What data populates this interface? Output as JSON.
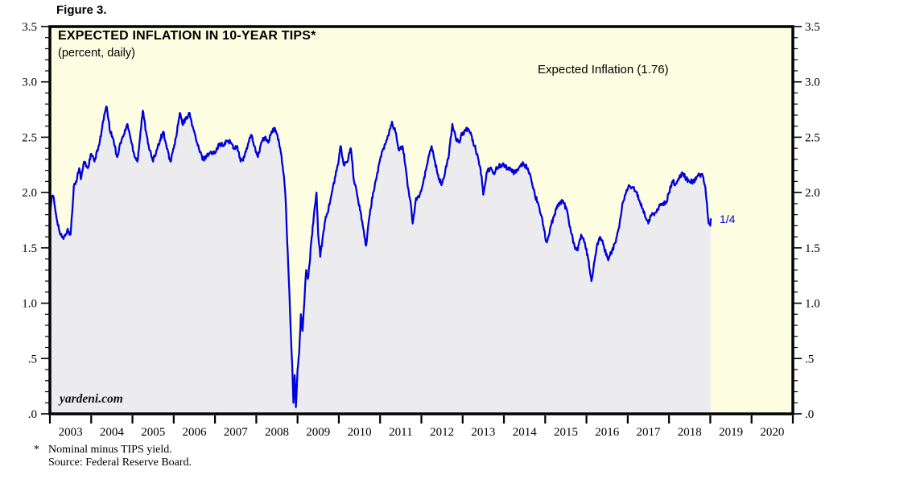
{
  "figure_label": "Figure 3.",
  "chart": {
    "title": "EXPECTED INFLATION IN 10-YEAR TIPS*",
    "subtitle": "(percent, daily)",
    "legend_label": "Expected Inflation (1.76)",
    "watermark": "yardeni.com",
    "end_date_label": "1/4"
  },
  "footnotes": {
    "asterisk": "*",
    "line1": "Nominal minus TIPS yield.",
    "line2": "Source: Federal Reserve Board."
  },
  "chart_data": {
    "type": "line",
    "title": "EXPECTED INFLATION IN 10-YEAR TIPS*",
    "subtitle": "(percent, daily)",
    "legend": [
      "Expected Inflation (1.76)"
    ],
    "legend_position": "top-right-inside",
    "xlabel": "",
    "ylabel": "percent",
    "xlim": [
      2003,
      2021
    ],
    "ylim": [
      0,
      3.5
    ],
    "y_major_step": 0.5,
    "y_minor_step": 0.1,
    "grid": false,
    "x_tick_years": [
      "2003",
      "2004",
      "2005",
      "2006",
      "2007",
      "2008",
      "2009",
      "2010",
      "2011",
      "2012",
      "2013",
      "2014",
      "2015",
      "2016",
      "2017",
      "2018",
      "2019",
      "2020"
    ],
    "y_tick_labels": [
      "3.5",
      "3.0",
      "2.5",
      "2.0",
      "1.5",
      "1.0",
      ".5",
      ".0"
    ],
    "y_tick_values": [
      3.5,
      3.0,
      2.5,
      2.0,
      1.5,
      1.0,
      0.5,
      0.0
    ],
    "colors": {
      "line": "#0000dc",
      "fill_below": "#ececef",
      "plot_background": "#fdfde2",
      "frame": "#000000",
      "text": "#000000",
      "annotation": "#0000dc"
    },
    "noise_amplitude": 0.022,
    "series": [
      {
        "name": "Expected Inflation",
        "last_value": 1.76,
        "last_date_label": "1/4",
        "points": [
          [
            2003.0,
            1.82
          ],
          [
            2003.04,
            1.95
          ],
          [
            2003.08,
            1.97
          ],
          [
            2003.15,
            1.8
          ],
          [
            2003.25,
            1.62
          ],
          [
            2003.33,
            1.58
          ],
          [
            2003.42,
            1.66
          ],
          [
            2003.5,
            1.62
          ],
          [
            2003.54,
            1.82
          ],
          [
            2003.58,
            2.06
          ],
          [
            2003.63,
            2.1
          ],
          [
            2003.71,
            2.22
          ],
          [
            2003.75,
            2.12
          ],
          [
            2003.83,
            2.28
          ],
          [
            2003.92,
            2.22
          ],
          [
            2004.0,
            2.35
          ],
          [
            2004.08,
            2.28
          ],
          [
            2004.17,
            2.4
          ],
          [
            2004.25,
            2.55
          ],
          [
            2004.33,
            2.72
          ],
          [
            2004.38,
            2.77
          ],
          [
            2004.46,
            2.55
          ],
          [
            2004.54,
            2.48
          ],
          [
            2004.63,
            2.32
          ],
          [
            2004.71,
            2.45
          ],
          [
            2004.79,
            2.52
          ],
          [
            2004.88,
            2.62
          ],
          [
            2004.96,
            2.48
          ],
          [
            2005.04,
            2.35
          ],
          [
            2005.12,
            2.28
          ],
          [
            2005.17,
            2.45
          ],
          [
            2005.25,
            2.74
          ],
          [
            2005.33,
            2.55
          ],
          [
            2005.42,
            2.38
          ],
          [
            2005.5,
            2.28
          ],
          [
            2005.58,
            2.38
          ],
          [
            2005.67,
            2.48
          ],
          [
            2005.75,
            2.55
          ],
          [
            2005.83,
            2.4
          ],
          [
            2005.92,
            2.28
          ],
          [
            2006.0,
            2.4
          ],
          [
            2006.08,
            2.55
          ],
          [
            2006.15,
            2.72
          ],
          [
            2006.21,
            2.62
          ],
          [
            2006.29,
            2.66
          ],
          [
            2006.37,
            2.72
          ],
          [
            2006.46,
            2.6
          ],
          [
            2006.54,
            2.48
          ],
          [
            2006.62,
            2.38
          ],
          [
            2006.71,
            2.3
          ],
          [
            2006.79,
            2.33
          ],
          [
            2006.87,
            2.36
          ],
          [
            2006.96,
            2.35
          ],
          [
            2007.04,
            2.4
          ],
          [
            2007.12,
            2.44
          ],
          [
            2007.21,
            2.42
          ],
          [
            2007.29,
            2.47
          ],
          [
            2007.37,
            2.46
          ],
          [
            2007.46,
            2.4
          ],
          [
            2007.54,
            2.42
          ],
          [
            2007.62,
            2.28
          ],
          [
            2007.71,
            2.32
          ],
          [
            2007.79,
            2.42
          ],
          [
            2007.87,
            2.52
          ],
          [
            2007.96,
            2.42
          ],
          [
            2008.04,
            2.32
          ],
          [
            2008.12,
            2.45
          ],
          [
            2008.21,
            2.5
          ],
          [
            2008.29,
            2.45
          ],
          [
            2008.37,
            2.55
          ],
          [
            2008.46,
            2.57
          ],
          [
            2008.54,
            2.48
          ],
          [
            2008.58,
            2.4
          ],
          [
            2008.67,
            2.15
          ],
          [
            2008.71,
            1.95
          ],
          [
            2008.75,
            1.55
          ],
          [
            2008.79,
            1.2
          ],
          [
            2008.83,
            0.8
          ],
          [
            2008.87,
            0.45
          ],
          [
            2008.9,
            0.1
          ],
          [
            2008.93,
            0.35
          ],
          [
            2008.96,
            0.06
          ],
          [
            2009.0,
            0.4
          ],
          [
            2009.04,
            0.55
          ],
          [
            2009.08,
            0.9
          ],
          [
            2009.12,
            0.75
          ],
          [
            2009.17,
            1.05
          ],
          [
            2009.21,
            1.3
          ],
          [
            2009.25,
            1.22
          ],
          [
            2009.29,
            1.35
          ],
          [
            2009.33,
            1.55
          ],
          [
            2009.38,
            1.72
          ],
          [
            2009.42,
            1.88
          ],
          [
            2009.46,
            2.0
          ],
          [
            2009.5,
            1.62
          ],
          [
            2009.55,
            1.42
          ],
          [
            2009.63,
            1.65
          ],
          [
            2009.68,
            1.78
          ],
          [
            2009.75,
            1.85
          ],
          [
            2009.83,
            2.0
          ],
          [
            2009.92,
            2.15
          ],
          [
            2010.0,
            2.3
          ],
          [
            2010.04,
            2.42
          ],
          [
            2010.12,
            2.25
          ],
          [
            2010.21,
            2.28
          ],
          [
            2010.29,
            2.4
          ],
          [
            2010.37,
            2.1
          ],
          [
            2010.46,
            1.95
          ],
          [
            2010.54,
            1.8
          ],
          [
            2010.62,
            1.6
          ],
          [
            2010.66,
            1.52
          ],
          [
            2010.75,
            1.8
          ],
          [
            2010.83,
            2.0
          ],
          [
            2010.92,
            2.15
          ],
          [
            2011.0,
            2.3
          ],
          [
            2011.08,
            2.4
          ],
          [
            2011.17,
            2.48
          ],
          [
            2011.25,
            2.58
          ],
          [
            2011.29,
            2.64
          ],
          [
            2011.37,
            2.55
          ],
          [
            2011.46,
            2.38
          ],
          [
            2011.54,
            2.42
          ],
          [
            2011.58,
            2.35
          ],
          [
            2011.67,
            2.05
          ],
          [
            2011.75,
            1.88
          ],
          [
            2011.79,
            1.72
          ],
          [
            2011.87,
            1.95
          ],
          [
            2011.96,
            1.98
          ],
          [
            2012.04,
            2.08
          ],
          [
            2012.12,
            2.22
          ],
          [
            2012.21,
            2.38
          ],
          [
            2012.25,
            2.42
          ],
          [
            2012.33,
            2.28
          ],
          [
            2012.42,
            2.12
          ],
          [
            2012.5,
            2.08
          ],
          [
            2012.58,
            2.2
          ],
          [
            2012.67,
            2.35
          ],
          [
            2012.75,
            2.62
          ],
          [
            2012.83,
            2.5
          ],
          [
            2012.92,
            2.45
          ],
          [
            2012.96,
            2.52
          ],
          [
            2013.04,
            2.55
          ],
          [
            2013.12,
            2.58
          ],
          [
            2013.21,
            2.52
          ],
          [
            2013.29,
            2.42
          ],
          [
            2013.37,
            2.32
          ],
          [
            2013.46,
            2.15
          ],
          [
            2013.5,
            1.98
          ],
          [
            2013.58,
            2.18
          ],
          [
            2013.67,
            2.22
          ],
          [
            2013.75,
            2.18
          ],
          [
            2013.83,
            2.22
          ],
          [
            2013.92,
            2.25
          ],
          [
            2014.0,
            2.25
          ],
          [
            2014.08,
            2.22
          ],
          [
            2014.17,
            2.2
          ],
          [
            2014.25,
            2.18
          ],
          [
            2014.33,
            2.2
          ],
          [
            2014.42,
            2.26
          ],
          [
            2014.5,
            2.25
          ],
          [
            2014.58,
            2.22
          ],
          [
            2014.67,
            2.1
          ],
          [
            2014.75,
            1.98
          ],
          [
            2014.83,
            1.9
          ],
          [
            2014.92,
            1.78
          ],
          [
            2015.0,
            1.6
          ],
          [
            2015.04,
            1.55
          ],
          [
            2015.12,
            1.68
          ],
          [
            2015.21,
            1.78
          ],
          [
            2015.29,
            1.88
          ],
          [
            2015.37,
            1.92
          ],
          [
            2015.46,
            1.9
          ],
          [
            2015.54,
            1.82
          ],
          [
            2015.62,
            1.65
          ],
          [
            2015.71,
            1.52
          ],
          [
            2015.79,
            1.48
          ],
          [
            2015.87,
            1.62
          ],
          [
            2015.96,
            1.55
          ],
          [
            2016.04,
            1.4
          ],
          [
            2016.08,
            1.3
          ],
          [
            2016.12,
            1.2
          ],
          [
            2016.17,
            1.32
          ],
          [
            2016.25,
            1.52
          ],
          [
            2016.33,
            1.6
          ],
          [
            2016.42,
            1.52
          ],
          [
            2016.5,
            1.42
          ],
          [
            2016.54,
            1.4
          ],
          [
            2016.62,
            1.48
          ],
          [
            2016.71,
            1.55
          ],
          [
            2016.79,
            1.68
          ],
          [
            2016.87,
            1.9
          ],
          [
            2016.96,
            2.0
          ],
          [
            2017.04,
            2.06
          ],
          [
            2017.12,
            2.05
          ],
          [
            2017.21,
            2.0
          ],
          [
            2017.29,
            1.92
          ],
          [
            2017.37,
            1.85
          ],
          [
            2017.46,
            1.75
          ],
          [
            2017.5,
            1.72
          ],
          [
            2017.58,
            1.8
          ],
          [
            2017.67,
            1.82
          ],
          [
            2017.75,
            1.86
          ],
          [
            2017.83,
            1.9
          ],
          [
            2017.92,
            1.9
          ],
          [
            2018.0,
            2.0
          ],
          [
            2018.08,
            2.1
          ],
          [
            2018.17,
            2.08
          ],
          [
            2018.25,
            2.14
          ],
          [
            2018.33,
            2.18
          ],
          [
            2018.42,
            2.12
          ],
          [
            2018.5,
            2.1
          ],
          [
            2018.58,
            2.1
          ],
          [
            2018.67,
            2.14
          ],
          [
            2018.75,
            2.16
          ],
          [
            2018.83,
            2.14
          ],
          [
            2018.88,
            2.05
          ],
          [
            2018.92,
            1.9
          ],
          [
            2018.96,
            1.72
          ],
          [
            2019.0,
            1.7
          ],
          [
            2019.01,
            1.76
          ]
        ]
      }
    ]
  }
}
